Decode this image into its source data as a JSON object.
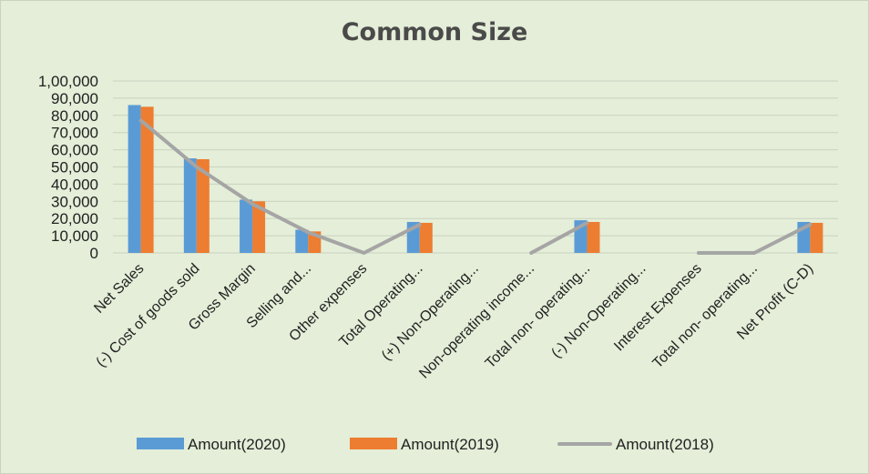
{
  "chart_data": {
    "type": "bar",
    "title": "Common Size",
    "xlabel": "",
    "ylabel": "",
    "ylim": [
      0,
      100000
    ],
    "yticks": [
      0,
      10000,
      20000,
      30000,
      40000,
      50000,
      60000,
      70000,
      80000,
      90000,
      100000
    ],
    "ytick_labels": [
      "0",
      "10,000",
      "20,000",
      "30,000",
      "40,000",
      "50,000",
      "60,000",
      "70,000",
      "80,000",
      "90,000",
      "1,00,000"
    ],
    "grid": true,
    "legend_position": "bottom",
    "categories": [
      "Net Sales",
      "(-) Cost of goods sold",
      "Gross Margin",
      "Selling and...",
      "Other expenses",
      "Total Operating...",
      "(+) Non-Operating...",
      "Non-operating income...",
      "Total non- operating...",
      "(-) Non-Operating...",
      "Interest Expenses",
      "Total non- operating...",
      "Net Profit (C-D)"
    ],
    "series": [
      {
        "name": "Amount(2020)",
        "type": "bar",
        "color": "#5b9bd5",
        "values": [
          86000,
          55000,
          31000,
          13500,
          0,
          18000,
          0,
          0,
          19000,
          0,
          0,
          0,
          18000
        ]
      },
      {
        "name": "Amount(2019)",
        "type": "bar",
        "color": "#ed7d31",
        "values": [
          85000,
          54500,
          30000,
          12500,
          0,
          17500,
          0,
          0,
          18000,
          0,
          0,
          0,
          17500
        ]
      },
      {
        "name": "Amount(2018)",
        "type": "line",
        "color": "#a5a5a5",
        "values": [
          77000,
          50000,
          28500,
          12000,
          0,
          16500,
          null,
          0,
          17500,
          null,
          0,
          0,
          16500
        ]
      }
    ]
  }
}
